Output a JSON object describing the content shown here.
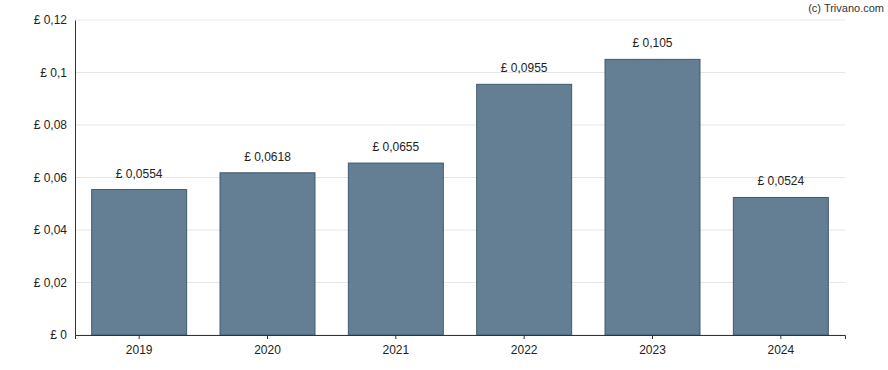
{
  "chart_data": {
    "type": "bar",
    "annotations": [
      "(c) Trivano.com"
    ],
    "categories": [
      "2019",
      "2020",
      "2021",
      "2022",
      "2023",
      "2024"
    ],
    "values": [
      0.0554,
      0.0618,
      0.0655,
      0.0955,
      0.105,
      0.0524
    ],
    "value_labels": [
      "£ 0,0554",
      "£ 0,0618",
      "£ 0,0655",
      "£ 0,0955",
      "£ 0,105",
      "£ 0,0524"
    ],
    "data_labels": true,
    "color": "#647f93",
    "ylim": [
      0,
      0.12
    ],
    "yticks": [
      {
        "value": 0,
        "label": "£ 0"
      },
      {
        "value": 0.02,
        "label": "£ 0,02"
      },
      {
        "value": 0.04,
        "label": "£ 0,04"
      },
      {
        "value": 0.06,
        "label": "£ 0,06"
      },
      {
        "value": 0.08,
        "label": "£ 0,08"
      },
      {
        "value": 0.1,
        "label": "£ 0,1"
      },
      {
        "value": 0.12,
        "label": "£ 0,12"
      }
    ],
    "grid": true
  }
}
